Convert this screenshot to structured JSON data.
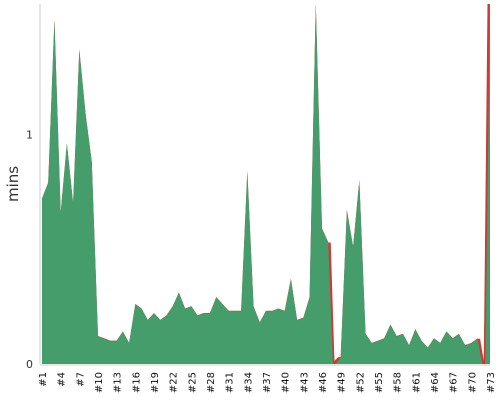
{
  "chart_data": {
    "type": "area",
    "ylabel": "mins",
    "ylim": [
      0,
      1.57
    ],
    "yticks": [
      0,
      1
    ],
    "gridlines": [
      1
    ],
    "grid": "dashed horizontal at 1",
    "x": [
      "#1",
      "#2",
      "#3",
      "#4",
      "#5",
      "#6",
      "#7",
      "#8",
      "#9",
      "#10",
      "#11",
      "#12",
      "#13",
      "#14",
      "#15",
      "#16",
      "#17",
      "#18",
      "#19",
      "#20",
      "#21",
      "#22",
      "#23",
      "#24",
      "#25",
      "#26",
      "#27",
      "#28",
      "#29",
      "#30",
      "#31",
      "#32",
      "#33",
      "#34",
      "#35",
      "#36",
      "#37",
      "#38",
      "#39",
      "#40",
      "#41",
      "#42",
      "#43",
      "#44",
      "#45",
      "#46",
      "#47",
      "#48",
      "#49",
      "#50",
      "#51",
      "#52",
      "#53",
      "#54",
      "#55",
      "#56",
      "#57",
      "#58",
      "#59",
      "#60",
      "#61",
      "#62",
      "#63",
      "#64",
      "#65",
      "#66",
      "#67",
      "#68",
      "#69",
      "#70",
      "#71",
      "#72",
      "#73"
    ],
    "xtick_labels": [
      "#1",
      "#4",
      "#7",
      "#10",
      "#13",
      "#16",
      "#19",
      "#22",
      "#25",
      "#28",
      "#31",
      "#34",
      "#37",
      "#40",
      "#43",
      "#46",
      "#49",
      "#52",
      "#55",
      "#58",
      "#61",
      "#64",
      "#67",
      "#70",
      "#73"
    ],
    "values": [
      0.72,
      0.79,
      1.5,
      0.66,
      0.96,
      0.7,
      1.37,
      1.09,
      0.88,
      0.12,
      0.11,
      0.1,
      0.1,
      0.14,
      0.09,
      0.26,
      0.24,
      0.19,
      0.22,
      0.19,
      0.21,
      0.25,
      0.31,
      0.24,
      0.25,
      0.21,
      0.22,
      0.22,
      0.29,
      0.26,
      0.23,
      0.23,
      0.23,
      0.84,
      0.25,
      0.18,
      0.23,
      0.23,
      0.24,
      0.23,
      0.37,
      0.19,
      0.2,
      0.29,
      1.6,
      0.59,
      0.53,
      0.0,
      0.03,
      0.67,
      0.51,
      0.8,
      0.13,
      0.09,
      0.1,
      0.11,
      0.17,
      0.12,
      0.13,
      0.08,
      0.15,
      0.1,
      0.07,
      0.11,
      0.09,
      0.14,
      0.11,
      0.13,
      0.08,
      0.09,
      0.11,
      0.0,
      1.6
    ],
    "colors": {
      "normal": "#449d6b",
      "drop": "#d13838",
      "grid": "#888888",
      "axis": "#cccccc",
      "text": "#333333"
    }
  }
}
